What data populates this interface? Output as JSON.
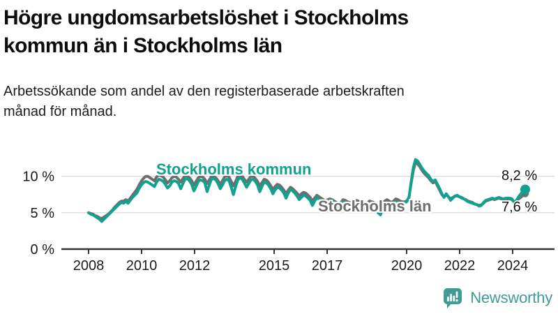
{
  "header": {
    "title": "Högre ungdomsarbetslöshet i Stockholms kommun än i Stockholms län",
    "subtitle": "Arbetssökande som andel av den registerbaserade arbetskraften månad för månad."
  },
  "footer": {
    "brand": "Newsworthy",
    "brand_color": "#3f9b93",
    "logo_icon": "chart-bars-speech-bubble"
  },
  "chart_data": {
    "type": "line",
    "unit": "%",
    "period": "monthly",
    "x_range": [
      "2008-01",
      "2024-08"
    ],
    "ylim": [
      0,
      13
    ],
    "grid": true,
    "grid_color": "#dcdcdc",
    "axis_color": "#333333",
    "tick_label_color": "#1a1a1a",
    "y_ticks": [
      {
        "value": 0,
        "label": "0 %"
      },
      {
        "value": 5,
        "label": "5 %"
      },
      {
        "value": 10,
        "label": "10 %"
      }
    ],
    "x_ticks": [
      {
        "year": 2008,
        "label": "2008"
      },
      {
        "year": 2010,
        "label": "2010"
      },
      {
        "year": 2012,
        "label": "2012"
      },
      {
        "year": 2015,
        "label": "2015"
      },
      {
        "year": 2017,
        "label": "2017"
      },
      {
        "year": 2020,
        "label": "2020"
      },
      {
        "year": 2022,
        "label": "2022"
      },
      {
        "year": 2024,
        "label": "2024"
      }
    ],
    "series": [
      {
        "name": "Stockholms län",
        "color": "#6e6e6e",
        "end_value": 7.6,
        "end_label": "7,6 %",
        "dot_radius": 5,
        "values": [
          5.0,
          4.9,
          4.8,
          4.6,
          4.5,
          4.3,
          4.2,
          4.4,
          4.6,
          4.8,
          5.1,
          5.4,
          5.8,
          6.1,
          6.4,
          6.6,
          6.6,
          6.8,
          6.6,
          7.0,
          7.4,
          7.8,
          8.2,
          8.8,
          9.3,
          9.7,
          10.0,
          10.0,
          9.8,
          9.6,
          9.4,
          9.9,
          10.2,
          10.1,
          9.9,
          9.5,
          9.1,
          9.4,
          9.8,
          10.0,
          9.9,
          9.6,
          9.2,
          9.7,
          10.1,
          10.0,
          9.8,
          9.4,
          8.8,
          9.3,
          9.8,
          10.0,
          9.9,
          9.6,
          9.0,
          9.5,
          10.0,
          10.0,
          9.8,
          9.4,
          8.9,
          9.4,
          9.9,
          10.1,
          9.9,
          9.3,
          8.7,
          9.3,
          10.0,
          10.2,
          10.0,
          9.6,
          9.2,
          9.6,
          10.0,
          10.0,
          9.7,
          9.3,
          8.7,
          9.1,
          9.6,
          9.5,
          9.2,
          8.7,
          8.2,
          8.6,
          8.9,
          8.8,
          8.5,
          8.1,
          7.6,
          8.1,
          8.5,
          8.3,
          8.0,
          7.7,
          7.3,
          7.6,
          7.8,
          7.7,
          7.4,
          7.1,
          6.6,
          7.0,
          7.4,
          7.2,
          7.0,
          6.8,
          6.6,
          6.8,
          6.9,
          6.8,
          6.6,
          6.4,
          6.1,
          6.4,
          6.8,
          6.7,
          6.5,
          6.4,
          6.3,
          6.5,
          6.7,
          6.6,
          6.4,
          6.2,
          6.0,
          6.3,
          6.6,
          6.5,
          6.4,
          6.2,
          6.1,
          6.0,
          6.3,
          6.6,
          6.8,
          6.6,
          6.4,
          6.6,
          6.9,
          6.8,
          6.6,
          6.5,
          6.5,
          6.6,
          7.1,
          9.0,
          10.8,
          11.9,
          11.7,
          11.3,
          10.8,
          10.4,
          10.1,
          9.8,
          9.4,
          9.1,
          9.3,
          8.7,
          8.1,
          7.5,
          7.2,
          7.5,
          7.2,
          6.9,
          7.1,
          7.3,
          7.3,
          7.2,
          7.1,
          6.9,
          6.8,
          6.6,
          6.5,
          6.4,
          6.2,
          6.1,
          6.0,
          6.1,
          6.3,
          6.6,
          6.7,
          6.8,
          6.9,
          6.8,
          6.9,
          7.0,
          6.9,
          6.9,
          6.9,
          6.9,
          6.9,
          6.8,
          6.4,
          6.6,
          6.9,
          7.1,
          7.4,
          7.6
        ]
      },
      {
        "name": "Stockholms kommun",
        "color": "#11a18f",
        "end_value": 8.2,
        "end_label": "8,2 %",
        "dot_radius": 7,
        "values": [
          5.0,
          4.8,
          4.7,
          4.5,
          4.3,
          4.1,
          3.8,
          4.1,
          4.4,
          4.7,
          5.0,
          5.3,
          5.6,
          5.9,
          6.2,
          6.4,
          6.3,
          6.6,
          6.3,
          6.7,
          7.1,
          7.4,
          7.7,
          8.3,
          8.8,
          9.1,
          9.3,
          9.2,
          9.0,
          8.8,
          8.6,
          9.2,
          9.6,
          9.5,
          9.3,
          8.9,
          8.4,
          8.7,
          9.2,
          9.4,
          9.3,
          9.0,
          8.3,
          9.0,
          9.6,
          9.7,
          9.4,
          8.9,
          8.0,
          8.6,
          9.3,
          9.5,
          9.4,
          9.1,
          7.9,
          8.8,
          9.6,
          9.7,
          9.5,
          9.0,
          8.3,
          8.8,
          9.4,
          9.6,
          9.4,
          8.5,
          7.5,
          8.6,
          9.5,
          9.8,
          9.6,
          9.1,
          8.5,
          9.0,
          9.5,
          9.6,
          9.3,
          8.8,
          7.9,
          8.6,
          9.2,
          9.1,
          8.8,
          8.3,
          7.6,
          8.1,
          8.5,
          8.4,
          8.1,
          7.7,
          7.0,
          7.7,
          8.2,
          8.0,
          7.7,
          7.3,
          6.8,
          7.1,
          7.4,
          7.3,
          7.0,
          6.7,
          6.0,
          6.6,
          7.0,
          6.9,
          6.7,
          6.5,
          6.3,
          6.5,
          6.7,
          6.6,
          6.4,
          6.1,
          5.7,
          6.1,
          6.5,
          6.4,
          6.2,
          6.1,
          5.9,
          6.1,
          6.3,
          6.2,
          6.0,
          5.8,
          5.5,
          5.9,
          6.2,
          6.1,
          6.0,
          5.8,
          5.0,
          4.7,
          5.5,
          6.1,
          6.3,
          6.1,
          5.9,
          6.2,
          6.5,
          6.4,
          6.3,
          6.3,
          6.4,
          6.5,
          7.0,
          9.2,
          11.2,
          12.3,
          12.1,
          11.6,
          11.1,
          10.7,
          10.4,
          10.1,
          9.6,
          9.3,
          9.5,
          8.9,
          8.3,
          7.6,
          7.1,
          7.6,
          7.2,
          6.7,
          7.0,
          7.3,
          7.4,
          7.2,
          7.0,
          6.9,
          6.7,
          6.5,
          6.4,
          6.3,
          6.2,
          6.1,
          5.9,
          6.0,
          6.4,
          6.7,
          6.8,
          6.9,
          7.0,
          6.9,
          7.0,
          7.1,
          7.0,
          6.9,
          7.0,
          7.0,
          7.0,
          6.9,
          6.4,
          6.7,
          7.2,
          7.6,
          8.0,
          8.2
        ]
      }
    ]
  }
}
